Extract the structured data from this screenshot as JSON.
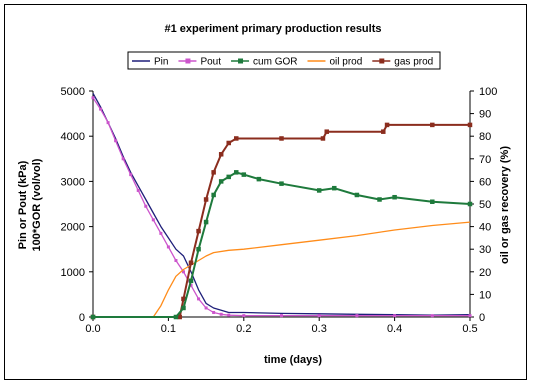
{
  "chart_data": {
    "type": "line",
    "title": "#1 experiment primary production results",
    "xlabel": "time (days)",
    "ylabel_left": [
      "Pin or Pout (kPa)",
      "100*GOR (vol/vol)"
    ],
    "ylabel_right": "oil or gas recovery (%)",
    "xlim": [
      0,
      0.5
    ],
    "ylim_left": [
      0,
      5000
    ],
    "ylim_right": [
      0,
      100
    ],
    "x_ticks": [
      "0.0",
      "0.1",
      "0.2",
      "0.3",
      "0.4",
      "0.5"
    ],
    "y_left_ticks": [
      "0",
      "1000",
      "2000",
      "3000",
      "4000",
      "5000"
    ],
    "y_right_ticks": [
      "0",
      "10",
      "20",
      "30",
      "40",
      "50",
      "60",
      "70",
      "80",
      "90",
      "100"
    ],
    "grid": false,
    "legend_position": "top",
    "series": [
      {
        "name": "Pin",
        "axis": "left",
        "color": "#1f1f7a",
        "marker": "none",
        "x": [
          0,
          0.01,
          0.02,
          0.03,
          0.04,
          0.05,
          0.06,
          0.07,
          0.08,
          0.09,
          0.1,
          0.11,
          0.12,
          0.13,
          0.14,
          0.15,
          0.16,
          0.17,
          0.18,
          0.2,
          0.25,
          0.3,
          0.35,
          0.4,
          0.45,
          0.5
        ],
        "y": [
          4950,
          4650,
          4300,
          3950,
          3550,
          3200,
          2900,
          2600,
          2300,
          2000,
          1750,
          1500,
          1350,
          1000,
          600,
          300,
          200,
          150,
          100,
          100,
          80,
          70,
          60,
          50,
          40,
          50
        ]
      },
      {
        "name": "Pout",
        "axis": "left",
        "color": "#cc55cc",
        "marker": "square",
        "x": [
          0,
          0.01,
          0.02,
          0.03,
          0.04,
          0.05,
          0.06,
          0.07,
          0.08,
          0.09,
          0.1,
          0.11,
          0.12,
          0.13,
          0.14,
          0.15,
          0.16,
          0.17,
          0.18,
          0.2,
          0.25,
          0.3,
          0.35,
          0.4,
          0.45,
          0.5
        ],
        "y": [
          4850,
          4600,
          4300,
          3900,
          3500,
          3150,
          2800,
          2450,
          2150,
          1850,
          1550,
          1250,
          1000,
          700,
          400,
          200,
          100,
          60,
          40,
          30,
          30,
          30,
          30,
          30,
          30,
          30
        ]
      },
      {
        "name": "cum GOR",
        "axis": "left",
        "color": "#1e7a3c",
        "marker": "square",
        "x": [
          0,
          0.11,
          0.12,
          0.13,
          0.14,
          0.15,
          0.16,
          0.17,
          0.18,
          0.19,
          0.2,
          0.22,
          0.25,
          0.3,
          0.32,
          0.35,
          0.38,
          0.4,
          0.45,
          0.5
        ],
        "y": [
          0,
          0,
          200,
          800,
          1500,
          2100,
          2700,
          3000,
          3100,
          3200,
          3150,
          3050,
          2950,
          2800,
          2850,
          2700,
          2600,
          2650,
          2550,
          2500
        ]
      },
      {
        "name": "oil prod",
        "axis": "right",
        "color": "#ff8c1a",
        "marker": "none",
        "x": [
          0,
          0.08,
          0.09,
          0.1,
          0.11,
          0.12,
          0.13,
          0.14,
          0.15,
          0.16,
          0.18,
          0.2,
          0.25,
          0.3,
          0.35,
          0.4,
          0.45,
          0.5
        ],
        "y": [
          0,
          0,
          5,
          12,
          18,
          21,
          23,
          25,
          27,
          28.5,
          29.5,
          30,
          32,
          34,
          36,
          38.5,
          40.5,
          42
        ]
      },
      {
        "name": "gas prod",
        "axis": "right",
        "color": "#8b2d1e",
        "marker": "square",
        "x": [
          0,
          0.115,
          0.12,
          0.13,
          0.14,
          0.15,
          0.16,
          0.17,
          0.18,
          0.19,
          0.25,
          0.305,
          0.31,
          0.385,
          0.39,
          0.45,
          0.5
        ],
        "y": [
          0,
          0,
          8,
          24,
          38,
          52,
          64,
          72,
          77,
          79,
          79,
          79,
          82,
          82,
          85,
          85,
          85
        ]
      }
    ]
  }
}
